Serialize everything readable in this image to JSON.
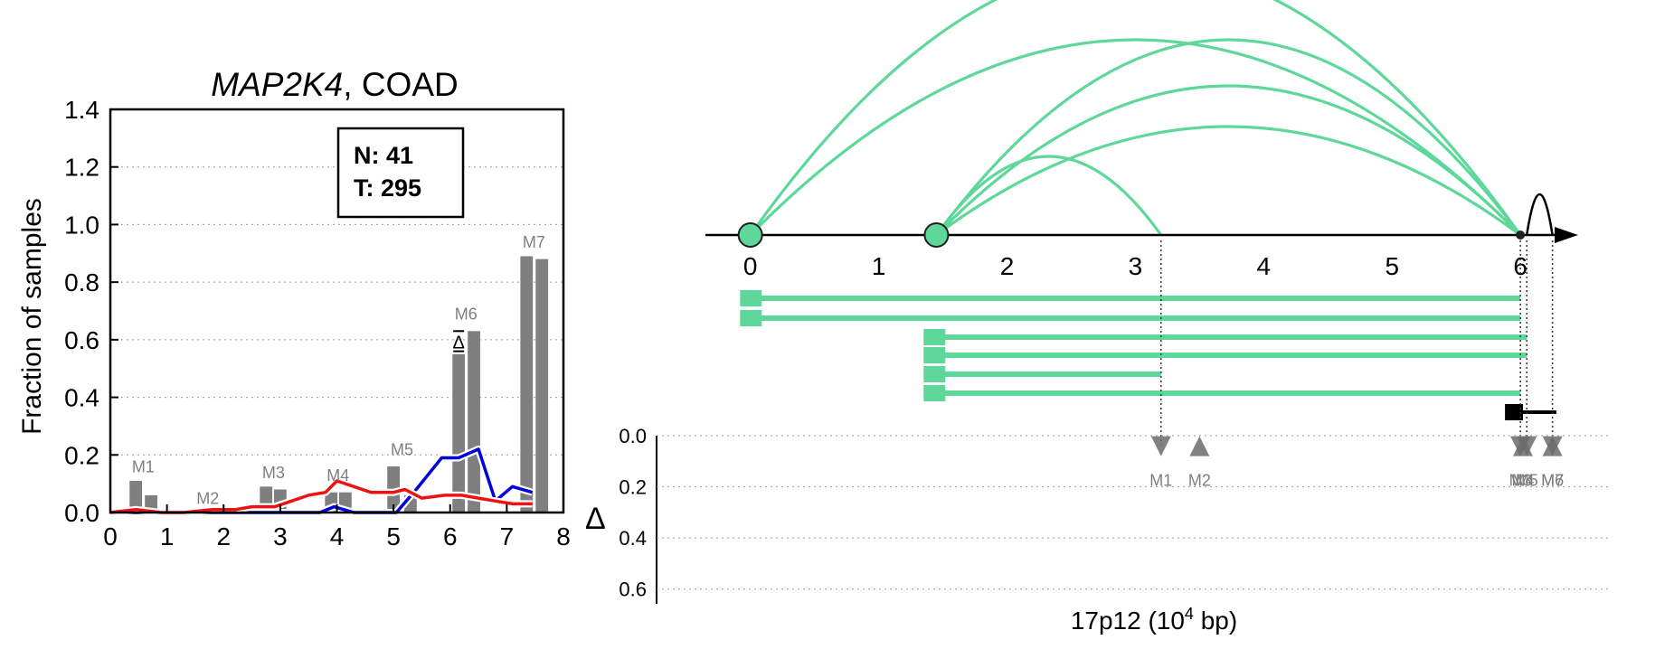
{
  "left_panel": {
    "title_gene": "MAP2K4",
    "title_rest": ", COAD",
    "ylabel": "Fraction of samples",
    "legend_n": "N: 41",
    "legend_t": "T: 295",
    "delta_symbol": "Δ"
  },
  "right_panel": {
    "xlabel_main": "17p12 (10",
    "xlabel_sup": "4",
    "xlabel_end": " bp)",
    "delta_axis_label": "Δ"
  },
  "colors": {
    "bar": "#7f7f7f",
    "normal_line": "#0000dd",
    "tumor_line": "#ee1111",
    "isoform": "#5dd89a",
    "marker": "#6b6b6b",
    "marker_label": "#7f7f7f"
  },
  "chart_data": [
    {
      "type": "bar",
      "title": "MAP2K4, COAD",
      "xlabel": "",
      "ylabel": "Fraction of samples",
      "xlim": [
        0,
        8
      ],
      "ylim": [
        0,
        1.4
      ],
      "xticks": [
        0,
        1,
        2,
        3,
        4,
        5,
        6,
        7,
        8
      ],
      "yticks": [
        0.0,
        0.2,
        0.4,
        0.6,
        0.8,
        1.0,
        1.2,
        1.4
      ],
      "grid": "y dotted",
      "legend_text": [
        "N: 41",
        "T: 295"
      ],
      "legend_position": "top-right",
      "bars": [
        {
          "x": 0.45,
          "value": 0.11
        },
        {
          "x": 0.72,
          "value": 0.06
        },
        {
          "x": 1.6,
          "value": 0.01
        },
        {
          "x": 1.85,
          "value": 0.01
        },
        {
          "x": 2.75,
          "value": 0.09
        },
        {
          "x": 3.0,
          "value": 0.08
        },
        {
          "x": 3.9,
          "value": 0.07
        },
        {
          "x": 4.15,
          "value": 0.07
        },
        {
          "x": 5.0,
          "value": 0.16
        },
        {
          "x": 5.3,
          "value": 0.06
        },
        {
          "x": 6.15,
          "value": 0.55
        },
        {
          "x": 6.42,
          "value": 0.63
        },
        {
          "x": 7.35,
          "value": 0.89
        },
        {
          "x": 7.62,
          "value": 0.88
        }
      ],
      "bar_labels": [
        {
          "label": "M1",
          "x": 0.58,
          "y": 0.14
        },
        {
          "label": "M2",
          "x": 1.72,
          "y": 0.03
        },
        {
          "label": "M3",
          "x": 2.88,
          "y": 0.12
        },
        {
          "label": "M4",
          "x": 4.02,
          "y": 0.11
        },
        {
          "label": "M5",
          "x": 5.15,
          "y": 0.2
        },
        {
          "label": "M6",
          "x": 6.28,
          "y": 0.67
        },
        {
          "label": "M7",
          "x": 7.48,
          "y": 0.92
        }
      ],
      "delta_marker": {
        "x": 6.15,
        "value_top": 0.63,
        "value_bottom": 0.56
      },
      "series": [
        {
          "color": "#0000dd",
          "x": [
            0,
            3.7,
            3.95,
            4.3,
            5.05,
            5.4,
            5.85,
            6.15,
            6.5,
            6.8,
            7.1,
            7.45
          ],
          "values": [
            0,
            0,
            0.02,
            0,
            0,
            0.08,
            0.19,
            0.19,
            0.22,
            0.04,
            0.09,
            0.07
          ]
        },
        {
          "color": "#ee1111",
          "x": [
            0,
            0.45,
            0.9,
            1.3,
            1.8,
            2.2,
            2.5,
            2.9,
            3.2,
            3.5,
            3.8,
            4.0,
            4.3,
            4.6,
            5.0,
            5.2,
            5.5,
            5.9,
            6.2,
            6.5,
            6.8,
            7.1,
            7.45
          ],
          "values": [
            0,
            0.01,
            0,
            0,
            0.01,
            0.01,
            0.02,
            0.02,
            0.04,
            0.06,
            0.07,
            0.11,
            0.09,
            0.07,
            0.07,
            0.08,
            0.05,
            0.06,
            0.06,
            0.05,
            0.04,
            0.03,
            0.03
          ]
        }
      ]
    },
    {
      "type": "diagram",
      "xlabel": "17p12 (10^4 bp)",
      "xlim": [
        -0.35,
        6.45
      ],
      "xticks": [
        0,
        1,
        2,
        3,
        4,
        5,
        6
      ],
      "circles": [
        {
          "x": 0.0
        },
        {
          "x": 1.45
        }
      ],
      "arcs": [
        {
          "from": 0.0,
          "to": 6.0,
          "height": 1.0
        },
        {
          "from": 0.0,
          "to": 6.0,
          "height": 0.72
        },
        {
          "from": 1.45,
          "to": 6.0,
          "height": 0.72
        },
        {
          "from": 1.45,
          "to": 6.0,
          "height": 0.55
        },
        {
          "from": 1.45,
          "to": 6.0,
          "height": 0.4
        },
        {
          "from": 1.45,
          "to": 3.2,
          "height": 0.29
        },
        {
          "from": 6.05,
          "to": 6.25,
          "height": 0.15
        }
      ],
      "isoforms": [
        {
          "start": -0.08,
          "end": 6.0
        },
        {
          "start": -0.08,
          "end": 6.0
        },
        {
          "start": 1.35,
          "end": 6.05
        },
        {
          "start": 1.35,
          "end": 6.05
        },
        {
          "start": 1.35,
          "end": 3.2
        },
        {
          "start": 1.35,
          "end": 6.0
        }
      ],
      "gene_model": {
        "box_start": 5.88,
        "box_end": 6.02,
        "line_end": 6.28
      },
      "delta_axis": {
        "ylim": [
          0.0,
          0.7
        ],
        "yticks": [
          0.0,
          0.2,
          0.4,
          0.6
        ],
        "label": "Δ"
      },
      "markers": [
        {
          "label": "M1",
          "x": 3.2,
          "direction": "down",
          "delta": 0.02
        },
        {
          "label": "M2",
          "x": 3.5,
          "direction": "up",
          "delta": 0.02
        },
        {
          "label": "M3",
          "x": 6.0,
          "direction": "down",
          "delta": 0.02
        },
        {
          "label": "M4",
          "x": 6.02,
          "direction": "up",
          "delta": 0.02
        },
        {
          "label": "M5",
          "x": 6.05,
          "direction": "down",
          "delta": 0.02
        },
        {
          "label": "M6",
          "x": 6.25,
          "direction": "down",
          "delta": 0.02
        },
        {
          "label": "M7",
          "x": 6.25,
          "direction": "up",
          "delta": 0.02
        }
      ]
    }
  ]
}
